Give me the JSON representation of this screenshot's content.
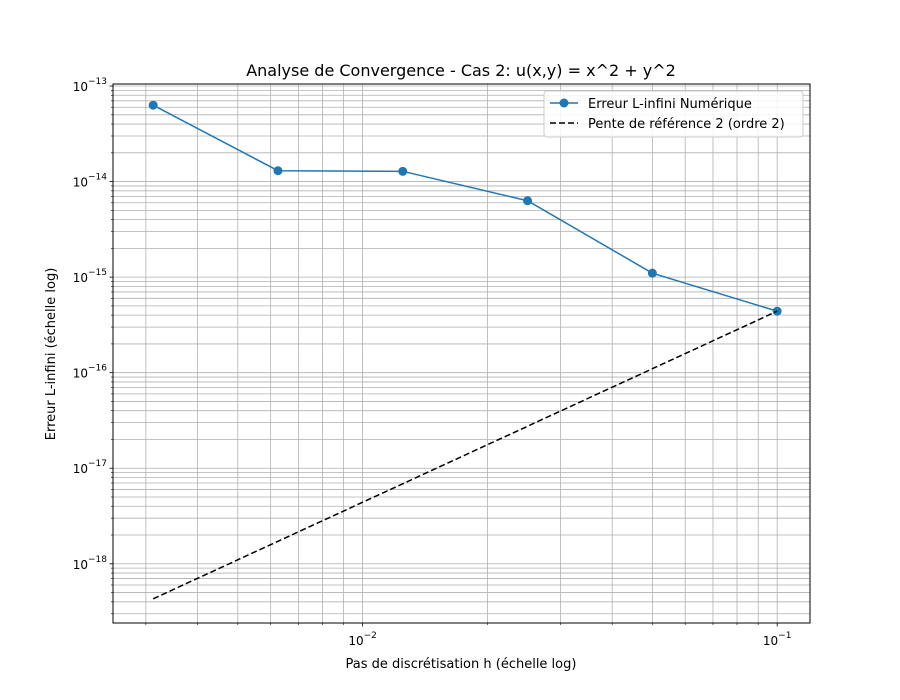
{
  "chart_data": {
    "type": "line",
    "title": "Analyse de Convergence - Cas 2: u(x,y) = x^2 + y^2",
    "xlabel": "Pas de discrétisation h (échelle log)",
    "ylabel": "Erreur L-infini (échelle log)",
    "xscale": "log",
    "yscale": "log",
    "xlim": [
      0.0025,
      0.12
    ],
    "ylim": [
      2.4e-19,
      1.05e-13
    ],
    "grid": true,
    "grid_which": "both",
    "legend_position": "top-right",
    "x_tick_labels": [
      {
        "value": 0.01,
        "base": "10",
        "exp": "−2"
      },
      {
        "value": 0.1,
        "base": "10",
        "exp": "−1"
      }
    ],
    "y_tick_labels": [
      {
        "value": 1e-18,
        "base": "10",
        "exp": "−18"
      },
      {
        "value": 1e-17,
        "base": "10",
        "exp": "−17"
      },
      {
        "value": 1e-16,
        "base": "10",
        "exp": "−16"
      },
      {
        "value": 1e-15,
        "base": "10",
        "exp": "−15"
      },
      {
        "value": 1e-14,
        "base": "10",
        "exp": "−14"
      },
      {
        "value": 1e-13,
        "base": "10",
        "exp": "−13"
      }
    ],
    "series": [
      {
        "name": "Erreur L-infini Numérique",
        "style": "solid",
        "marker": "circle",
        "color": "#1f77b4",
        "x": [
          0.003125,
          0.00625,
          0.0125,
          0.025,
          0.05,
          0.1
        ],
        "y": [
          6.3e-14,
          1.3e-14,
          1.28e-14,
          6.3e-15,
          1.1e-15,
          4.4e-16
        ]
      },
      {
        "name": "Pente de référence 2 (ordre 2)",
        "style": "dashed",
        "marker": "none",
        "color": "#000000",
        "x": [
          0.003125,
          0.1
        ],
        "y": [
          4.3e-19,
          4.4e-16
        ]
      }
    ]
  }
}
